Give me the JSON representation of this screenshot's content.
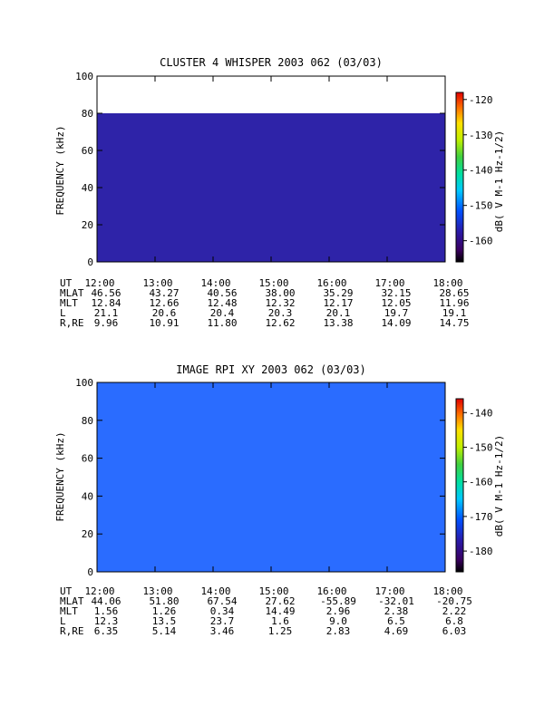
{
  "chart_data": [
    {
      "type": "heatmap",
      "title": "CLUSTER 4 WHISPER 2003 062 (03/03)",
      "ylabel": "FREQUENCY (kHz)",
      "ylim": [
        0,
        100
      ],
      "yticks": [
        "0",
        "20",
        "40",
        "60",
        "80",
        "100"
      ],
      "xticks": [
        "12:00",
        "13:00",
        "14:00",
        "15:00",
        "16:00",
        "17:00",
        "18:00"
      ],
      "colorbar_label": "dB( V M-1 Hz-1/2)",
      "colorbar_ticks": [
        "-120",
        "-130",
        "-140",
        "-150",
        "-160"
      ],
      "colorbar_range": [
        -166,
        -118
      ],
      "ephemeris": [
        {
          "label": "UT",
          "values": [
            "12:00",
            "13:00",
            "14:00",
            "15:00",
            "16:00",
            "17:00",
            "18:00"
          ]
        },
        {
          "label": "MLAT",
          "values": [
            "46.56",
            "43.27",
            "40.56",
            "38.00",
            "35.29",
            "32.15",
            "28.65"
          ]
        },
        {
          "label": "MLT",
          "values": [
            "12.84",
            "12.66",
            "12.48",
            "12.32",
            "12.17",
            "12.05",
            "11.96"
          ]
        },
        {
          "label": "L",
          "values": [
            "21.1",
            "20.6",
            "20.4",
            "20.3",
            "20.1",
            "19.7",
            "19.1"
          ]
        },
        {
          "label": "R,RE",
          "values": [
            "9.96",
            "10.91",
            "11.80",
            "12.62",
            "13.38",
            "14.09",
            "14.75"
          ]
        }
      ]
    },
    {
      "type": "heatmap",
      "title": "IMAGE RPI XY 2003 062 (03/03)",
      "ylabel": "FREQUENCY (kHz)",
      "ylim": [
        0,
        100
      ],
      "yticks": [
        "0",
        "20",
        "40",
        "60",
        "80",
        "100"
      ],
      "xticks": [
        "12:00",
        "13:00",
        "14:00",
        "15:00",
        "16:00",
        "17:00",
        "18:00"
      ],
      "colorbar_label": "dB( V M-1 Hz-1/2)",
      "colorbar_ticks": [
        "-140",
        "-150",
        "-160",
        "-170",
        "-180"
      ],
      "colorbar_range": [
        -186,
        -136
      ],
      "ephemeris": [
        {
          "label": "UT",
          "values": [
            "12:00",
            "13:00",
            "14:00",
            "15:00",
            "16:00",
            "17:00",
            "18:00"
          ]
        },
        {
          "label": "MLAT",
          "values": [
            "44.06",
            "51.80",
            "67.54",
            "27.62",
            "-55.89",
            "-32.01",
            "-20.75"
          ]
        },
        {
          "label": "MLT",
          "values": [
            "1.56",
            "1.26",
            "0.34",
            "14.49",
            "2.96",
            "2.38",
            "2.22"
          ]
        },
        {
          "label": "L",
          "values": [
            "12.3",
            "13.5",
            "23.7",
            "1.6",
            "9.0",
            "6.5",
            "6.8"
          ]
        },
        {
          "label": "R,RE",
          "values": [
            "6.35",
            "5.14",
            "3.46",
            "1.25",
            "2.83",
            "4.69",
            "6.03"
          ]
        }
      ]
    }
  ]
}
